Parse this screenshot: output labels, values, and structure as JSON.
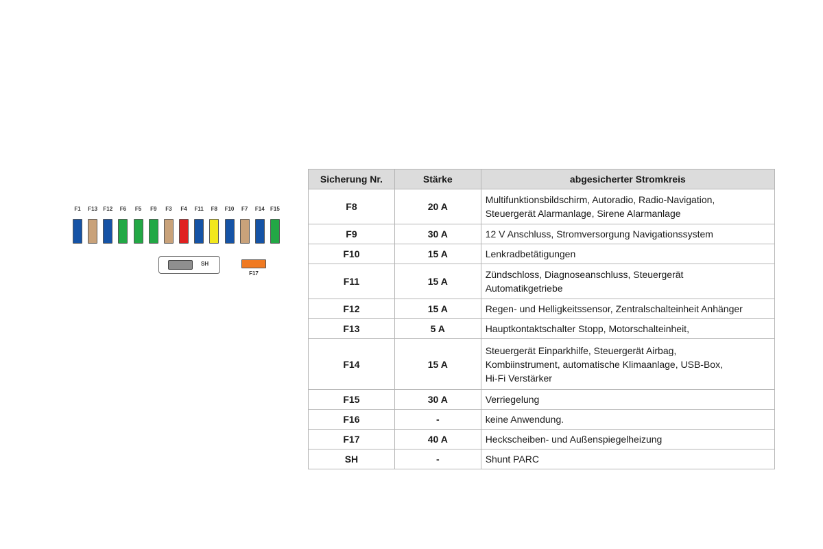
{
  "diagram": {
    "fuses": [
      {
        "label": "F1",
        "color": "#1553a6"
      },
      {
        "label": "F13",
        "color": "#c9a27a"
      },
      {
        "label": "F12",
        "color": "#1553a6"
      },
      {
        "label": "F6",
        "color": "#22a845"
      },
      {
        "label": "F5",
        "color": "#22a845"
      },
      {
        "label": "F9",
        "color": "#22a845"
      },
      {
        "label": "F3",
        "color": "#c9a27a"
      },
      {
        "label": "F4",
        "color": "#e02020"
      },
      {
        "label": "F11",
        "color": "#1553a6"
      },
      {
        "label": "F8",
        "color": "#f2e81c"
      },
      {
        "label": "F10",
        "color": "#1553a6"
      },
      {
        "label": "F7",
        "color": "#c9a27a"
      },
      {
        "label": "F14",
        "color": "#1553a6"
      },
      {
        "label": "F15",
        "color": "#22a845"
      }
    ],
    "shunt_label": "SH",
    "shunt_color": "#8f8f8f",
    "f17_label": "F17",
    "f17_color": "#f07a22"
  },
  "table": {
    "headers": [
      "Sicherung Nr.",
      "Stärke",
      "abgesicherter Stromkreis"
    ],
    "rows": [
      {
        "num": "F8",
        "rating": "20 A",
        "lines": [
          "Multifunktionsbildschirm, Autoradio, Radio-Navigation,",
          "Steuergerät Alarmanlage, Sirene Alarmanlage"
        ]
      },
      {
        "num": "F9",
        "rating": "30 A",
        "lines": [
          "12 V Anschluss, Stromversorgung Navigationssystem"
        ]
      },
      {
        "num": "F10",
        "rating": "15 A",
        "lines": [
          "Lenkradbetätigungen"
        ]
      },
      {
        "num": "F11",
        "rating": "15 A",
        "lines": [
          "Zündschloss, Diagnoseanschluss, Steuergerät",
          "Automatikgetriebe"
        ]
      },
      {
        "num": "F12",
        "rating": "15 A",
        "lines": [
          "Regen- und Helligkeitssensor, Zentralschalteinheit Anhänger"
        ]
      },
      {
        "num": "F13",
        "rating": "5 A",
        "lines": [
          "Hauptkontaktschalter Stopp, Motorschalteinheit,"
        ]
      },
      {
        "num": "F14",
        "rating": "15 A",
        "lines": [
          "Steuergerät Einparkhilfe, Steuergerät Airbag,",
          "Kombiinstrument, automatische Klimaanlage, USB-Box,",
          "Hi-Fi Verstärker"
        ]
      },
      {
        "num": "F15",
        "rating": "30 A",
        "lines": [
          "Verriegelung"
        ]
      },
      {
        "num": "F16",
        "rating": "-",
        "lines": [
          "keine Anwendung."
        ]
      },
      {
        "num": "F17",
        "rating": "40 A",
        "lines": [
          "Heckscheiben- und Außenspiegelheizung"
        ]
      },
      {
        "num": "SH",
        "rating": "-",
        "lines": [
          "Shunt PARC"
        ]
      }
    ]
  }
}
